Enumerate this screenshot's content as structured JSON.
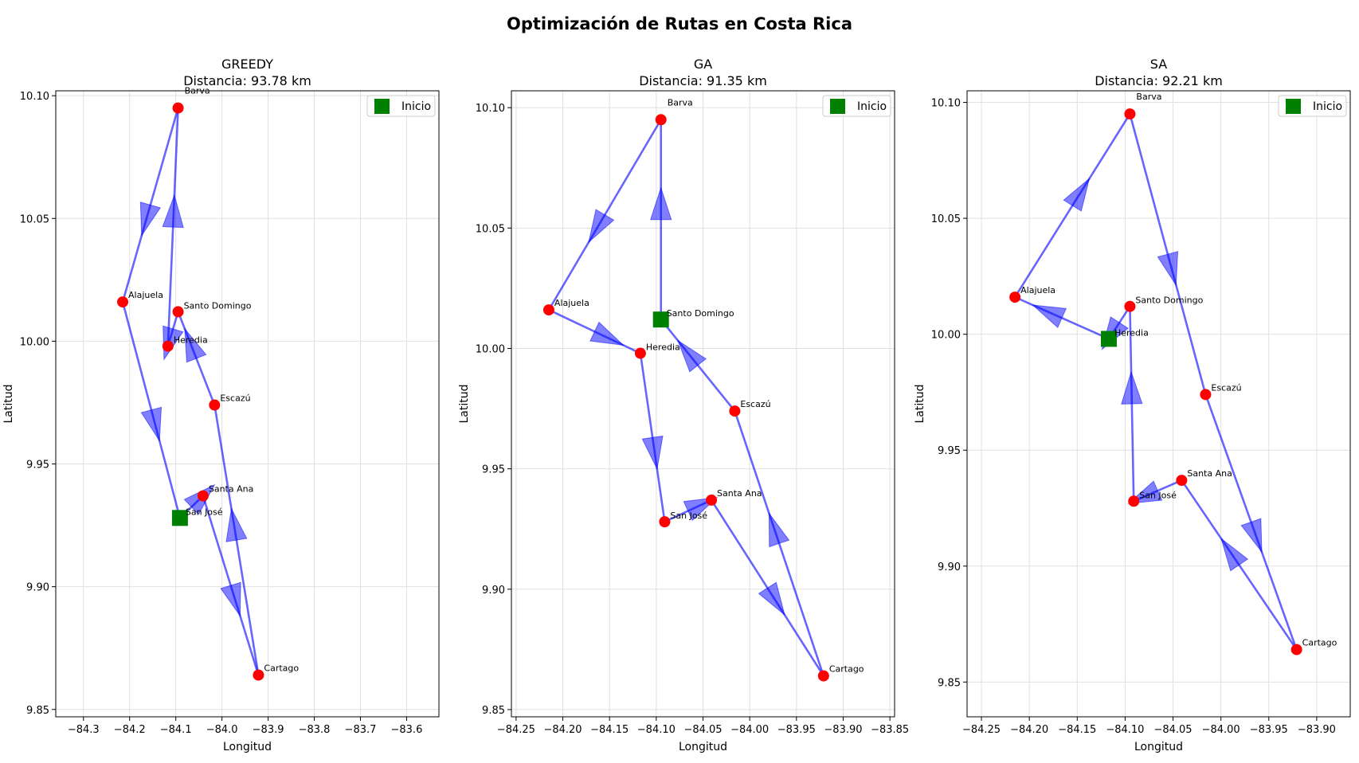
{
  "suptitle": "Optimización de Rutas en Costa Rica",
  "chart_data": [
    {
      "type": "line",
      "title": "GREEDY",
      "subtitle": "Distancia: 93.78 km",
      "xlabel": "Longitud",
      "ylabel": "Latitud",
      "xlim": [
        -84.36,
        -83.53
      ],
      "ylim": [
        9.847,
        10.102
      ],
      "xticks": [
        -84.3,
        -84.2,
        -84.1,
        -84.0,
        -83.9,
        -83.8,
        -83.7,
        -83.6
      ],
      "xtick_labels": [
        "−84.3",
        "−84.2",
        "−84.1",
        "−84.0",
        "−83.9",
        "−83.8",
        "−83.7",
        "−83.6"
      ],
      "yticks": [
        9.85,
        9.9,
        9.95,
        10.0,
        10.05,
        10.1
      ],
      "ytick_labels": [
        "9.85",
        "9.90",
        "9.95",
        "10.00",
        "10.05",
        "10.10"
      ],
      "grid": true,
      "legend": {
        "position": "top-right",
        "label": "Inicio"
      },
      "start": "San José",
      "route": [
        "San José",
        "Santa Ana",
        "Cartago",
        "Escazú",
        "Santo Domingo",
        "Heredia",
        "Barva",
        "Alajuela",
        "San José"
      ],
      "route_color": "#0000ff",
      "city_color": "#ff0000",
      "start_color": "#008000",
      "cities": [
        {
          "name": "Barva",
          "lon": -84.095,
          "lat": 10.095
        },
        {
          "name": "Alajuela",
          "lon": -84.215,
          "lat": 10.016
        },
        {
          "name": "Santo Domingo",
          "lon": -84.095,
          "lat": 10.012
        },
        {
          "name": "Heredia",
          "lon": -84.117,
          "lat": 9.998
        },
        {
          "name": "Escazú",
          "lon": -84.016,
          "lat": 9.974
        },
        {
          "name": "Santa Ana",
          "lon": -84.041,
          "lat": 9.937
        },
        {
          "name": "San José",
          "lon": -84.091,
          "lat": 9.928
        },
        {
          "name": "Cartago",
          "lon": -83.921,
          "lat": 9.864
        }
      ]
    },
    {
      "type": "line",
      "title": "GA",
      "subtitle": "Distancia: 91.35 km",
      "xlabel": "Longitud",
      "ylabel": "Latitud",
      "xlim": [
        -84.255,
        -83.845
      ],
      "ylim": [
        9.847,
        10.107
      ],
      "xticks": [
        -84.25,
        -84.2,
        -84.15,
        -84.1,
        -84.05,
        -84.0,
        -83.95,
        -83.9,
        -83.85
      ],
      "xtick_labels": [
        "−84.25",
        "−84.20",
        "−84.15",
        "−84.10",
        "−84.05",
        "−84.00",
        "−83.95",
        "−83.90",
        "−83.85"
      ],
      "yticks": [
        9.85,
        9.9,
        9.95,
        10.0,
        10.05,
        10.1
      ],
      "ytick_labels": [
        "9.85",
        "9.90",
        "9.95",
        "10.00",
        "10.05",
        "10.10"
      ],
      "grid": true,
      "legend": {
        "position": "top-right",
        "label": "Inicio"
      },
      "start": "Santo Domingo",
      "route": [
        "Santo Domingo",
        "Barva",
        "Alajuela",
        "Heredia",
        "San José",
        "Santa Ana",
        "Cartago",
        "Escazú",
        "Santo Domingo"
      ],
      "route_color": "#0000ff",
      "city_color": "#ff0000",
      "start_color": "#008000",
      "cities": [
        {
          "name": "Barva",
          "lon": -84.095,
          "lat": 10.095
        },
        {
          "name": "Alajuela",
          "lon": -84.215,
          "lat": 10.016
        },
        {
          "name": "Santo Domingo",
          "lon": -84.095,
          "lat": 10.012
        },
        {
          "name": "Heredia",
          "lon": -84.117,
          "lat": 9.998
        },
        {
          "name": "Escazú",
          "lon": -84.016,
          "lat": 9.974
        },
        {
          "name": "Santa Ana",
          "lon": -84.041,
          "lat": 9.937
        },
        {
          "name": "San José",
          "lon": -84.091,
          "lat": 9.928
        },
        {
          "name": "Cartago",
          "lon": -83.921,
          "lat": 9.864
        }
      ]
    },
    {
      "type": "line",
      "title": "SA",
      "subtitle": "Distancia: 92.21 km",
      "xlabel": "Longitud",
      "ylabel": "Latitud",
      "xlim": [
        -84.265,
        -83.865
      ],
      "ylim": [
        9.835,
        10.105
      ],
      "xticks": [
        -84.25,
        -84.2,
        -84.15,
        -84.1,
        -84.05,
        -84.0,
        -83.95,
        -83.9
      ],
      "xtick_labels": [
        "−84.25",
        "−84.20",
        "−84.15",
        "−84.10",
        "−84.05",
        "−84.00",
        "−83.95",
        "−83.90"
      ],
      "yticks": [
        9.85,
        9.9,
        9.95,
        10.0,
        10.05,
        10.1
      ],
      "ytick_labels": [
        "9.85",
        "9.90",
        "9.95",
        "10.00",
        "10.05",
        "10.10"
      ],
      "grid": true,
      "legend": {
        "position": "top-right",
        "label": "Inicio"
      },
      "start": "Heredia",
      "route": [
        "Heredia",
        "Alajuela",
        "Barva",
        "Escazú",
        "Cartago",
        "Santa Ana",
        "San José",
        "Santo Domingo",
        "Heredia"
      ],
      "route_color": "#0000ff",
      "city_color": "#ff0000",
      "start_color": "#008000",
      "cities": [
        {
          "name": "Barva",
          "lon": -84.095,
          "lat": 10.095
        },
        {
          "name": "Alajuela",
          "lon": -84.215,
          "lat": 10.016
        },
        {
          "name": "Santo Domingo",
          "lon": -84.095,
          "lat": 10.012
        },
        {
          "name": "Heredia",
          "lon": -84.117,
          "lat": 9.998
        },
        {
          "name": "Escazú",
          "lon": -84.016,
          "lat": 9.974
        },
        {
          "name": "Santa Ana",
          "lon": -84.041,
          "lat": 9.937
        },
        {
          "name": "San José",
          "lon": -84.091,
          "lat": 9.928
        },
        {
          "name": "Cartago",
          "lon": -83.921,
          "lat": 9.864
        }
      ]
    }
  ]
}
